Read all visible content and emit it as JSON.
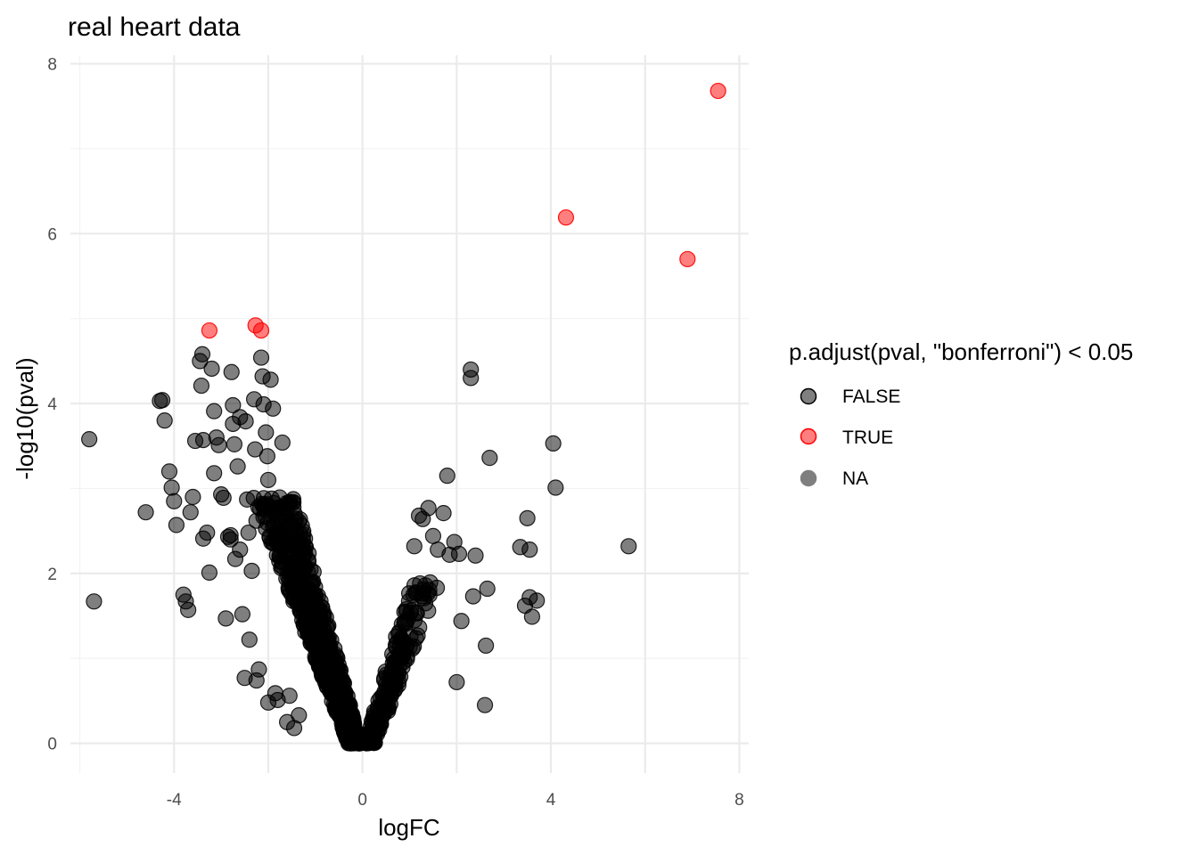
{
  "chart_data": {
    "type": "scatter",
    "title": "real heart data",
    "xlabel": "logFC",
    "ylabel": "-log10(pval)",
    "xlim": [
      -6.2,
      8.2
    ],
    "ylim": [
      -0.35,
      8.1
    ],
    "x_ticks": [
      -4,
      0,
      4,
      8
    ],
    "x_tick_labels": [
      "-4",
      "0",
      "4",
      "8"
    ],
    "y_ticks": [
      0,
      2,
      4,
      6,
      8
    ],
    "y_tick_labels": [
      "0",
      "2",
      "4",
      "6",
      "8"
    ],
    "x_minor_ticks": [
      -6,
      -2,
      2,
      6
    ],
    "y_minor_ticks": [
      1,
      3,
      5,
      7
    ],
    "grid": true,
    "legend": {
      "title": "p.adjust(pval, \"bonferroni\") < 0.05",
      "position": "right",
      "entries": [
        {
          "label": "FALSE",
          "color": "#000000"
        },
        {
          "label": "TRUE",
          "color": "#ff0000"
        },
        {
          "label": "NA",
          "color": "#7f7f7f"
        }
      ]
    },
    "series": [
      {
        "name": "TRUE",
        "color": "#ff0000",
        "points": [
          [
            7.55,
            7.68
          ],
          [
            4.32,
            6.19
          ],
          [
            6.9,
            5.7
          ],
          [
            -3.25,
            4.86
          ],
          [
            -2.27,
            4.92
          ],
          [
            -2.15,
            4.86
          ]
        ]
      },
      {
        "name": "FALSE",
        "color": "#000000",
        "points": [
          [
            -5.8,
            3.58
          ],
          [
            -5.7,
            1.67
          ],
          [
            -4.6,
            2.72
          ],
          [
            -4.3,
            4.03
          ],
          [
            -4.25,
            4.04
          ],
          [
            -4.2,
            3.8
          ],
          [
            -4.1,
            3.2
          ],
          [
            -4.05,
            3.01
          ],
          [
            -4.0,
            2.85
          ],
          [
            -3.95,
            2.57
          ],
          [
            -3.8,
            1.75
          ],
          [
            -3.75,
            1.67
          ],
          [
            -3.7,
            1.57
          ],
          [
            -3.65,
            2.72
          ],
          [
            -3.6,
            2.9
          ],
          [
            -3.55,
            3.56
          ],
          [
            -3.45,
            4.5
          ],
          [
            -3.4,
            4.58
          ],
          [
            -3.42,
            4.21
          ],
          [
            -3.38,
            3.57
          ],
          [
            -3.38,
            2.41
          ],
          [
            -3.3,
            2.48
          ],
          [
            -3.25,
            2.01
          ],
          [
            -3.2,
            4.41
          ],
          [
            -3.15,
            3.91
          ],
          [
            -3.15,
            3.18
          ],
          [
            -3.1,
            3.6
          ],
          [
            -3.05,
            3.51
          ],
          [
            -3.0,
            2.93
          ],
          [
            -2.95,
            2.89
          ],
          [
            -2.9,
            1.47
          ],
          [
            -2.85,
            2.43
          ],
          [
            -2.8,
            2.45
          ],
          [
            -2.8,
            2.4
          ],
          [
            -2.78,
            4.37
          ],
          [
            -2.75,
            3.98
          ],
          [
            -2.75,
            3.76
          ],
          [
            -2.72,
            3.52
          ],
          [
            -2.7,
            2.17
          ],
          [
            -2.65,
            3.26
          ],
          [
            -2.6,
            3.84
          ],
          [
            -2.6,
            2.28
          ],
          [
            -2.55,
            1.52
          ],
          [
            -2.5,
            0.77
          ],
          [
            -2.48,
            3.79
          ],
          [
            -2.45,
            2.87
          ],
          [
            -2.42,
            2.48
          ],
          [
            -2.4,
            1.22
          ],
          [
            -2.35,
            2.03
          ],
          [
            -2.3,
            4.05
          ],
          [
            -2.28,
            3.46
          ],
          [
            -2.25,
            2.62
          ],
          [
            -2.25,
            0.74
          ],
          [
            -2.2,
            0.87
          ],
          [
            -2.15,
            4.54
          ],
          [
            -2.12,
            4.32
          ],
          [
            -2.1,
            3.99
          ],
          [
            -2.05,
            3.66
          ],
          [
            -2.02,
            3.38
          ],
          [
            -2.0,
            3.1
          ],
          [
            -2.0,
            0.48
          ],
          [
            -1.95,
            4.28
          ],
          [
            -1.9,
            3.94
          ],
          [
            -1.85,
            0.59
          ],
          [
            -1.8,
            0.51
          ],
          [
            -1.7,
            3.54
          ],
          [
            -1.6,
            0.25
          ],
          [
            -1.55,
            0.56
          ],
          [
            -1.45,
            0.18
          ],
          [
            -1.35,
            0.33
          ],
          [
            1.1,
            2.32
          ],
          [
            1.2,
            2.68
          ],
          [
            1.28,
            2.64
          ],
          [
            1.4,
            2.77
          ],
          [
            1.5,
            2.44
          ],
          [
            1.6,
            2.28
          ],
          [
            1.72,
            2.71
          ],
          [
            1.8,
            3.15
          ],
          [
            1.85,
            2.22
          ],
          [
            1.95,
            2.37
          ],
          [
            2.0,
            0.72
          ],
          [
            2.05,
            2.23
          ],
          [
            2.1,
            1.44
          ],
          [
            2.3,
            4.4
          ],
          [
            2.3,
            4.3
          ],
          [
            2.35,
            1.73
          ],
          [
            2.4,
            2.21
          ],
          [
            2.6,
            0.45
          ],
          [
            2.62,
            1.15
          ],
          [
            2.65,
            1.82
          ],
          [
            2.7,
            3.36
          ],
          [
            3.35,
            2.31
          ],
          [
            3.45,
            1.62
          ],
          [
            3.5,
            2.65
          ],
          [
            3.55,
            1.72
          ],
          [
            3.55,
            2.28
          ],
          [
            3.6,
            1.49
          ],
          [
            3.7,
            1.68
          ],
          [
            4.05,
            3.53
          ],
          [
            4.1,
            3.01
          ],
          [
            5.65,
            2.32
          ]
        ]
      }
    ]
  }
}
